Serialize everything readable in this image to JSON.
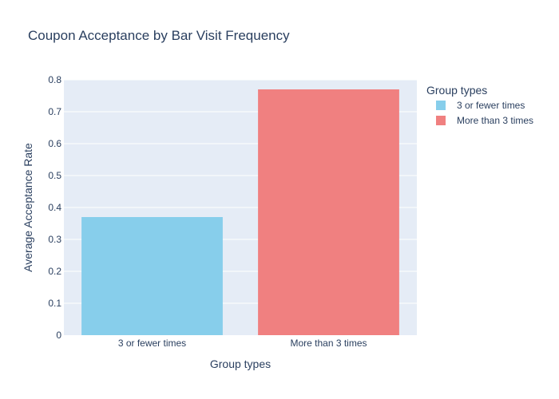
{
  "chart_data": {
    "type": "bar",
    "title": "Coupon Acceptance by Bar Visit Frequency",
    "xlabel": "Group types",
    "ylabel": "Average Acceptance Rate",
    "ylim": [
      0,
      0.8
    ],
    "yticks": [
      "0",
      "0.1",
      "0.2",
      "0.3",
      "0.4",
      "0.5",
      "0.6",
      "0.7",
      "0.8"
    ],
    "categories": [
      "3 or fewer times",
      "More than 3 times"
    ],
    "series": [
      {
        "name": "3 or fewer times",
        "color": "#87ceeb",
        "x": "3 or fewer times",
        "value": 0.37
      },
      {
        "name": "More than 3 times",
        "color": "#f08080",
        "x": "More than 3 times",
        "value": 0.77
      }
    ],
    "legend": {
      "title": "Group types",
      "position": "right"
    },
    "grid": true,
    "plot_bgcolor": "#e5ecf6"
  }
}
